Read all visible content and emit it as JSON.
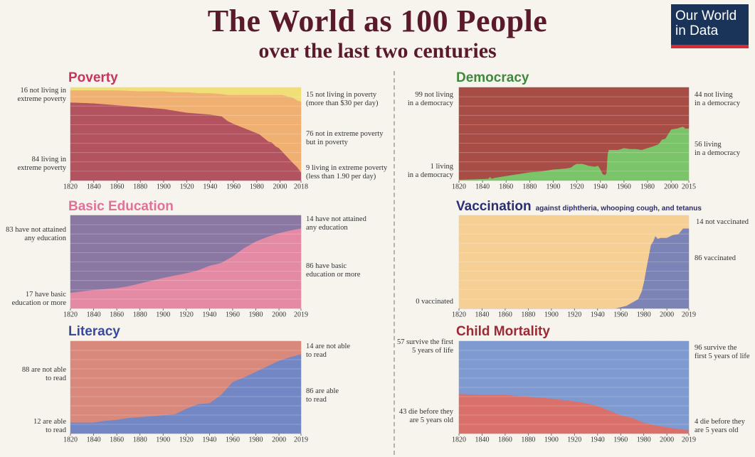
{
  "header": {
    "title": "The World as 100 People",
    "subtitle": "over the last two centuries",
    "logo_line1": "Our World",
    "logo_line2": "in Data"
  },
  "colors": {
    "background": "#f7f4ee",
    "title": "#5a1a2a",
    "logo_bg": "#1a3358",
    "logo_bar": "#d42b34"
  },
  "chart_data": [
    {
      "type": "area",
      "id": "poverty",
      "title": "Poverty",
      "title_color": "#c8355a",
      "x": [
        1820,
        1840,
        1860,
        1880,
        1890,
        1900,
        1910,
        1920,
        1930,
        1940,
        1950,
        1955,
        1960,
        1966,
        1970,
        1974,
        1978,
        1982,
        1985,
        1990,
        1993,
        1996,
        1999,
        2002,
        2005,
        2008,
        2011,
        2015,
        2018
      ],
      "xticks": [
        1820,
        1840,
        1860,
        1880,
        1900,
        1920,
        1940,
        1960,
        1980,
        2000,
        2018
      ],
      "ylim": [
        0,
        100
      ],
      "series": [
        {
          "name": "living in extreme poverty",
          "color": "#b3535f",
          "values": [
            84,
            83,
            81,
            79,
            78,
            77,
            75,
            73,
            72,
            71,
            69,
            64,
            61,
            58,
            56,
            54,
            52,
            50,
            47,
            42,
            41,
            37,
            35,
            31,
            27,
            23,
            19,
            14,
            9
          ]
        },
        {
          "name": "not in extreme poverty but in poverty",
          "color": "#f0b072",
          "values": [
            13,
            14,
            16,
            17,
            18,
            19,
            20,
            22,
            22,
            23,
            24,
            28,
            31,
            34,
            36,
            38,
            40,
            42,
            45,
            50,
            51,
            55,
            57,
            61,
            64,
            67,
            70,
            72,
            76
          ]
        },
        {
          "name": "not living in poverty",
          "color": "#efdf76",
          "values": [
            3,
            3,
            3,
            4,
            4,
            4,
            5,
            5,
            6,
            6,
            7,
            8,
            8,
            8,
            8,
            8,
            8,
            8,
            8,
            8,
            8,
            8,
            8,
            8,
            9,
            10,
            11,
            14,
            15
          ]
        }
      ],
      "labels_left": [
        "16 not living in\nextreme poverty",
        "84 living in\nextreme poverty"
      ],
      "labels_right": [
        "15 not living in poverty\n(more than $30 per day)",
        "76 not in extreme poverty\nbut in poverty",
        "9 living in extreme poverty\n(less than 1.90 per day)"
      ]
    },
    {
      "type": "area",
      "id": "education",
      "title": "Basic Education",
      "title_color": "#e0729a",
      "x": [
        1820,
        1840,
        1860,
        1870,
        1880,
        1900,
        1920,
        1930,
        1940,
        1950,
        1960,
        1970,
        1980,
        1990,
        2000,
        2010,
        2019
      ],
      "xticks": [
        1820,
        1840,
        1860,
        1880,
        1900,
        1920,
        1940,
        1960,
        1980,
        2000,
        2019
      ],
      "ylim": [
        0,
        100
      ],
      "series": [
        {
          "name": "have basic education or more",
          "color": "#e58aa4",
          "values": [
            17,
            20,
            22,
            24,
            27,
            33,
            38,
            41,
            46,
            49,
            56,
            65,
            72,
            77,
            81,
            84,
            86
          ]
        },
        {
          "name": "have not attained any education",
          "color": "#8a78a3",
          "values": [
            83,
            80,
            78,
            76,
            73,
            67,
            62,
            59,
            54,
            51,
            44,
            35,
            28,
            23,
            19,
            16,
            14
          ]
        }
      ],
      "labels_left": [
        "83 have not attained\nany education",
        "17 have basic\neducation or more"
      ],
      "labels_right": [
        "14 have not attained\nany education",
        "86 have basic\neducation or more"
      ]
    },
    {
      "type": "area",
      "id": "literacy",
      "title": "Literacy",
      "title_color": "#3a4a9a",
      "x": [
        1820,
        1830,
        1840,
        1850,
        1860,
        1870,
        1880,
        1890,
        1900,
        1910,
        1920,
        1930,
        1940,
        1950,
        1955,
        1960,
        1970,
        1980,
        1990,
        2000,
        2010,
        2019
      ],
      "xticks": [
        1820,
        1840,
        1860,
        1880,
        1900,
        1920,
        1940,
        1960,
        1980,
        2000,
        2019
      ],
      "ylim": [
        0,
        100
      ],
      "series": [
        {
          "name": "are able to read",
          "color": "#7487c5",
          "values": [
            12,
            12,
            12,
            14,
            15,
            17,
            18,
            19,
            20,
            21,
            27,
            32,
            33,
            42,
            49,
            56,
            61,
            67,
            73,
            79,
            83,
            86
          ]
        },
        {
          "name": "are not able to read",
          "color": "#d9897c",
          "values": [
            88,
            88,
            88,
            86,
            85,
            83,
            82,
            81,
            80,
            79,
            73,
            68,
            67,
            58,
            51,
            44,
            39,
            33,
            27,
            21,
            17,
            14
          ]
        }
      ],
      "labels_left": [
        "88 are not able\nto read",
        "12 are able\nto read"
      ],
      "labels_right": [
        "14 are not able\nto read",
        "86 are able\nto read"
      ]
    },
    {
      "type": "area",
      "id": "democracy",
      "title": "Democracy",
      "title_color": "#3d8a3d",
      "x": [
        1820,
        1845,
        1846,
        1848,
        1850,
        1860,
        1870,
        1880,
        1890,
        1900,
        1910,
        1915,
        1918,
        1920,
        1925,
        1930,
        1935,
        1938,
        1940,
        1942,
        1944,
        1945,
        1946,
        1947,
        1950,
        1955,
        1960,
        1965,
        1970,
        1975,
        1980,
        1985,
        1989,
        1990,
        1992,
        1995,
        2000,
        2005,
        2010,
        2012,
        2015
      ],
      "xticks": [
        1820,
        1840,
        1860,
        1880,
        1900,
        1920,
        1940,
        1960,
        1980,
        2000,
        2015
      ],
      "ylim": [
        0,
        100
      ],
      "series": [
        {
          "name": "living in a democracy",
          "color": "#7cc46a",
          "values": [
            1,
            2,
            4,
            2,
            3,
            5,
            7,
            9,
            10,
            12,
            13,
            14,
            17,
            18,
            18,
            16,
            15,
            16,
            12,
            7,
            6,
            8,
            28,
            33,
            33,
            33,
            35,
            34,
            34,
            33,
            35,
            37,
            39,
            40,
            44,
            45,
            55,
            56,
            58,
            56,
            56
          ]
        },
        {
          "name": "not living in a democracy",
          "color": "#a84d46",
          "values": [
            99,
            98,
            96,
            98,
            97,
            95,
            93,
            91,
            90,
            88,
            87,
            86,
            83,
            82,
            82,
            84,
            85,
            84,
            88,
            93,
            94,
            92,
            72,
            67,
            67,
            67,
            65,
            66,
            66,
            67,
            65,
            63,
            61,
            60,
            56,
            55,
            45,
            44,
            42,
            44,
            44
          ]
        }
      ],
      "labels_left": [
        "99 not living\nin a democracy",
        "1 living\nin a democracy"
      ],
      "labels_right": [
        "44 not living\nin a democracy",
        "56 living\nin a democracy"
      ]
    },
    {
      "type": "area",
      "id": "vaccination",
      "title": "Vaccination",
      "subtitle": "against diphtheria, whooping cough, and tetanus",
      "title_color": "#2a2e72",
      "x": [
        1820,
        1955,
        1965,
        1975,
        1978,
        1980,
        1982,
        1984,
        1986,
        1988,
        1990,
        1992,
        1995,
        2000,
        2005,
        2010,
        2014,
        2019
      ],
      "xticks": [
        1820,
        1840,
        1860,
        1880,
        1900,
        1920,
        1940,
        1960,
        1980,
        2000,
        2019
      ],
      "ylim": [
        0,
        100
      ],
      "series": [
        {
          "name": "vaccinated",
          "color": "#7c83b5",
          "values": [
            0,
            0,
            3,
            10,
            18,
            28,
            42,
            55,
            68,
            72,
            78,
            75,
            76,
            76,
            79,
            80,
            86,
            86
          ]
        },
        {
          "name": "not vaccinated",
          "color": "#f6cf94",
          "values": [
            100,
            100,
            97,
            90,
            82,
            72,
            58,
            45,
            32,
            28,
            22,
            25,
            24,
            24,
            21,
            20,
            14,
            14
          ]
        }
      ],
      "labels_left": [
        "0 vaccinated"
      ],
      "labels_right": [
        "14 not vaccinated",
        "86 vaccinated"
      ]
    },
    {
      "type": "area",
      "id": "child_mortality",
      "title": "Child Mortality",
      "title_color": "#9a2a35",
      "x": [
        1820,
        1840,
        1860,
        1880,
        1900,
        1920,
        1930,
        1940,
        1950,
        1960,
        1970,
        1980,
        1990,
        2000,
        2010,
        2019
      ],
      "xticks": [
        1820,
        1840,
        1860,
        1880,
        1900,
        1920,
        1940,
        1960,
        1980,
        2000,
        2019
      ],
      "ylim": [
        0,
        100
      ],
      "series": [
        {
          "name": "die before they are 5 years old",
          "color": "#d9706a",
          "values": [
            43,
            42,
            42,
            40,
            38,
            35,
            33,
            30,
            25,
            20,
            17,
            12,
            9,
            7,
            5,
            4
          ]
        },
        {
          "name": "survive the first 5 years of life",
          "color": "#7e9ad0",
          "values": [
            57,
            58,
            58,
            60,
            62,
            65,
            67,
            70,
            75,
            80,
            83,
            88,
            91,
            93,
            95,
            96
          ]
        }
      ],
      "labels_left": [
        "57 survive the first\n5 years of life",
        "43 die before they\nare 5 years old"
      ],
      "labels_right": [
        "96 survive the\nfirst 5 years of life",
        "4 die before they\nare 5 years old"
      ]
    }
  ]
}
